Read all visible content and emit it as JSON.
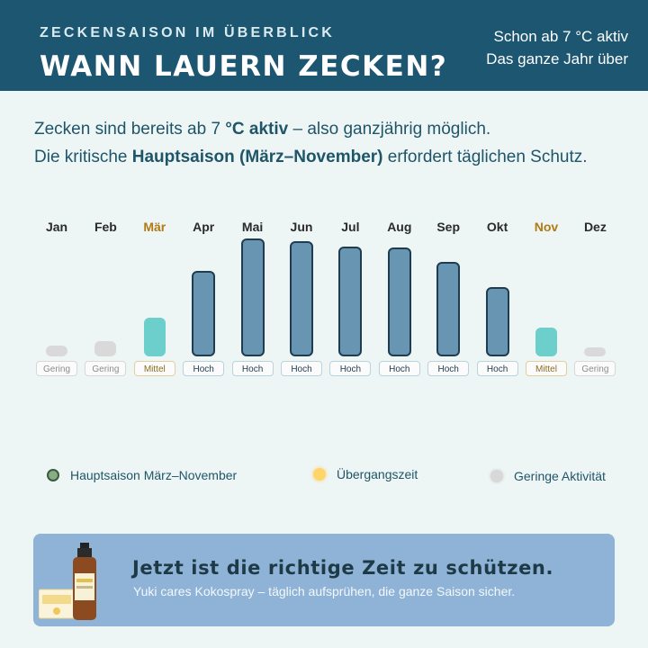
{
  "header": {
    "kicker": "ZECKENSAISON IM ÜBERBLICK",
    "title": "WANN LAUERN ZECKEN?",
    "right_line1": "Schon ab 7 °C aktiv",
    "right_line2": "Das ganze Jahr über"
  },
  "intro": {
    "line1_pre": "Zecken sind bereits ab 7 ",
    "line1_bold": "°C aktiv",
    "line1_post": " – also ganzjährig möglich.",
    "line2_pre": "Die kritische ",
    "line2_bold": "Hauptsaison (März–November)",
    "line2_post": " erfordert täglichen Schutz."
  },
  "months": [
    {
      "name": "Jan",
      "level": "low",
      "label": "Gering",
      "activity": 0.07,
      "accent": false
    },
    {
      "name": "Feb",
      "level": "low",
      "label": "Gering",
      "activity": 0.1,
      "accent": false
    },
    {
      "name": "Mär",
      "level": "mid",
      "label": "Mittel",
      "activity": 0.25,
      "accent": true
    },
    {
      "name": "Apr",
      "level": "high",
      "label": "Hoch",
      "activity": 0.56,
      "accent": false
    },
    {
      "name": "Mai",
      "level": "high",
      "label": "Hoch",
      "activity": 0.77,
      "accent": false
    },
    {
      "name": "Jun",
      "level": "high",
      "label": "Hoch",
      "activity": 0.75,
      "accent": false
    },
    {
      "name": "Jul",
      "level": "high",
      "label": "Hoch",
      "activity": 0.72,
      "accent": false
    },
    {
      "name": "Aug",
      "level": "high",
      "label": "Hoch",
      "activity": 0.71,
      "accent": false
    },
    {
      "name": "Sep",
      "level": "high",
      "label": "Hoch",
      "activity": 0.62,
      "accent": false
    },
    {
      "name": "Okt",
      "level": "high",
      "label": "Hoch",
      "activity": 0.45,
      "accent": false
    },
    {
      "name": "Nov",
      "level": "mid",
      "label": "Mittel",
      "activity": 0.19,
      "accent": true
    },
    {
      "name": "Dez",
      "level": "low",
      "label": "Gering",
      "activity": 0.06,
      "accent": false
    }
  ],
  "legend": {
    "peak": "Hauptsaison März–November",
    "transition": "Übergangszeit",
    "low": "Geringe Aktivität"
  },
  "cta": {
    "title": "Jetzt ist die richtige Zeit zu schützen.",
    "subtitle": "Yuki cares Kokospray – täglich aufsprühen, die ganze Saison sicher."
  },
  "colors": {
    "header_bg": "#1c5670",
    "high": "#6896b2",
    "mid": "#6dcfcb",
    "low": "#d9d9d9",
    "accent_text": "#b07a14",
    "cta_bg": "#8eb3d6"
  },
  "icons": [
    "product-spray-bottle-icon",
    "product-box-icon"
  ]
}
